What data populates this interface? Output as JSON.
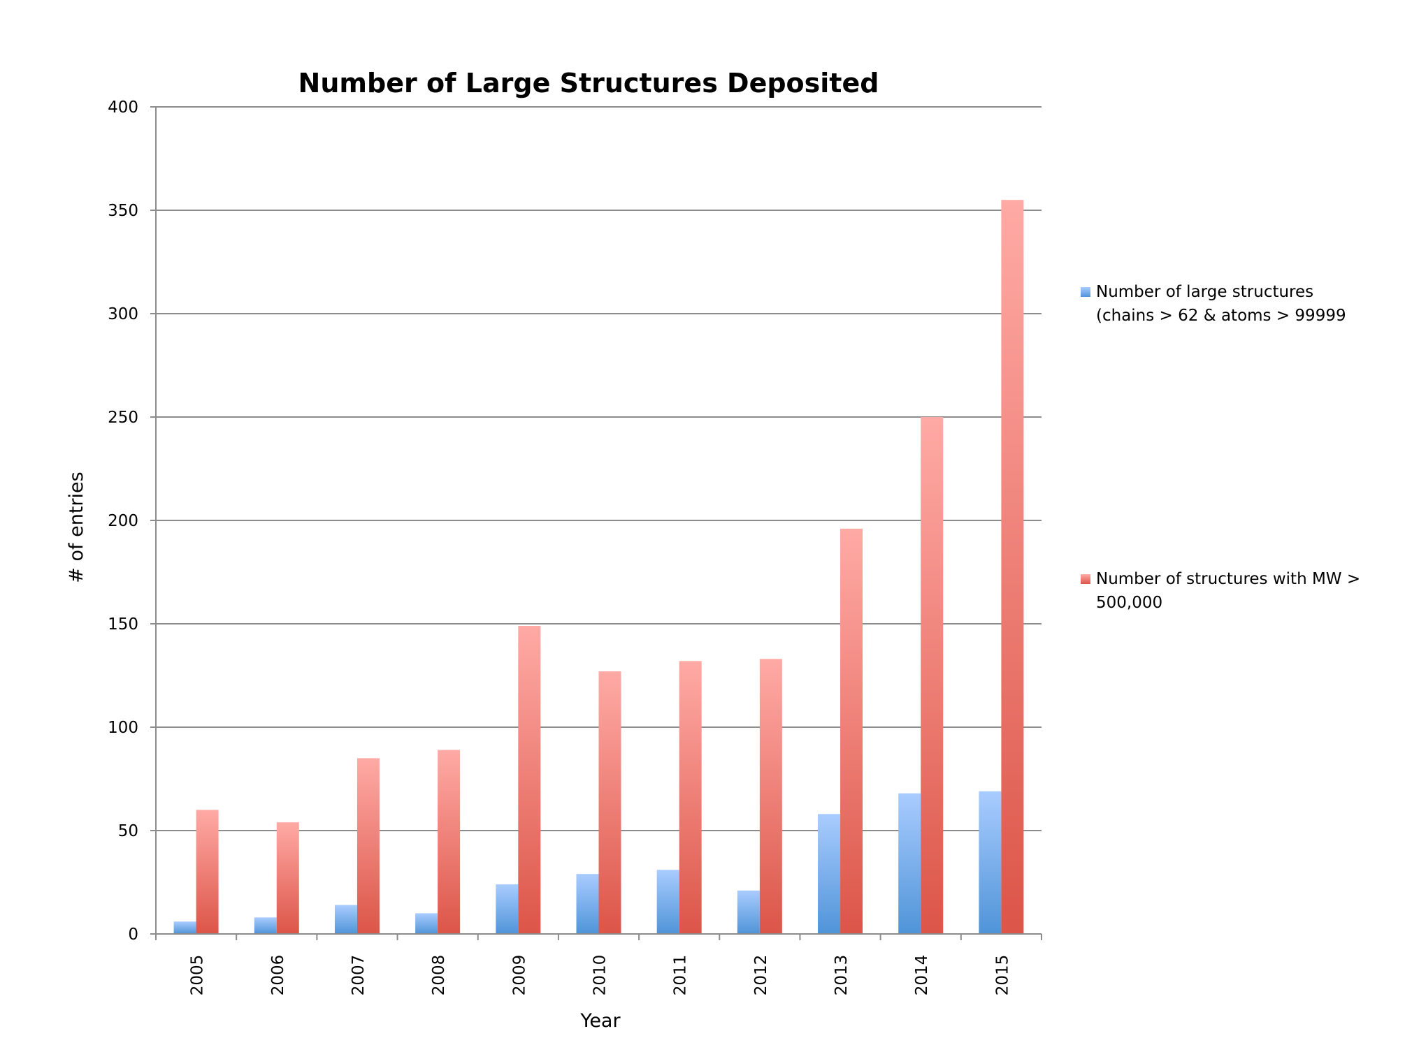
{
  "chart_data": {
    "type": "bar",
    "title": "Number of Large Structures Deposited",
    "xlabel": "Year",
    "ylabel": "# of entries",
    "ylim": [
      0,
      400
    ],
    "yticks": [
      0,
      50,
      100,
      150,
      200,
      250,
      300,
      350,
      400
    ],
    "grid": true,
    "legend_position": "right",
    "categories": [
      "2005",
      "2006",
      "2007",
      "2008",
      "2009",
      "2010",
      "2011",
      "2012",
      "2013",
      "2014",
      "2015"
    ],
    "series": [
      {
        "name": "Number of large structures (chains > 62 & atoms > 99999",
        "legend_lines": [
          "Number of large structures",
          "(chains > 62 & atoms > 99999"
        ],
        "color_top": "#a9ccff",
        "color_bottom": "#4f94d8",
        "values": [
          6,
          8,
          14,
          10,
          24,
          29,
          31,
          21,
          58,
          68,
          69
        ]
      },
      {
        "name": "Number of structures with MW > 500,000",
        "legend_lines": [
          "Number of structures with MW >",
          "500,000"
        ],
        "color_top": "#ffaaa5",
        "color_bottom": "#dc5548",
        "values": [
          60,
          54,
          85,
          89,
          149,
          127,
          132,
          133,
          196,
          250,
          355
        ]
      }
    ]
  }
}
